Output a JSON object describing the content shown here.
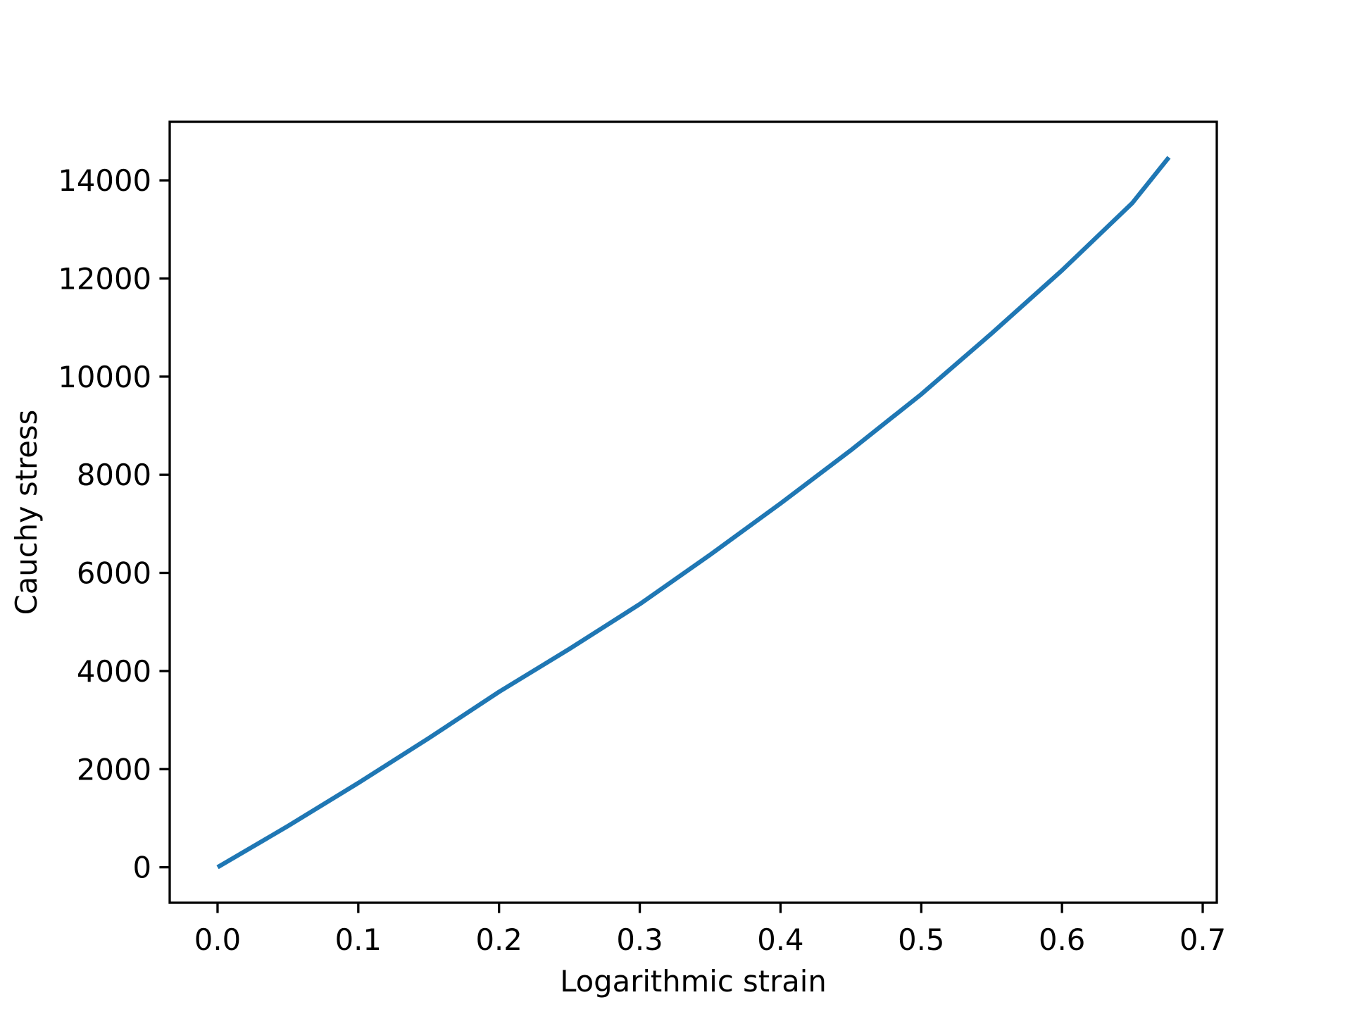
{
  "chart_data": {
    "type": "line",
    "title": "",
    "xlabel": "Logarithmic strain",
    "ylabel": "Cauchy stress",
    "xlim": [
      -0.034,
      0.71
    ],
    "ylim": [
      -723,
      15193
    ],
    "xticks": [
      0.0,
      0.1,
      0.2,
      0.3,
      0.4,
      0.5,
      0.6,
      0.7
    ],
    "xtick_labels": [
      "0.0",
      "0.1",
      "0.2",
      "0.3",
      "0.4",
      "0.5",
      "0.6",
      "0.7"
    ],
    "yticks": [
      0,
      2000,
      4000,
      6000,
      8000,
      10000,
      12000,
      14000
    ],
    "ytick_labels": [
      "0",
      "2000",
      "4000",
      "6000",
      "8000",
      "10000",
      "12000",
      "14000"
    ],
    "grid": false,
    "series": [
      {
        "color": "#1f77b4",
        "x": [
          0.0,
          0.05,
          0.1,
          0.15,
          0.2,
          0.25,
          0.3,
          0.35,
          0.4,
          0.45,
          0.5,
          0.55,
          0.6,
          0.65,
          0.676
        ],
        "y": [
          0,
          840,
          1718,
          2630,
          3576,
          4450,
          5364,
          6370,
          7415,
          8500,
          9641,
          10880,
          12165,
          13540,
          14470
        ]
      }
    ]
  }
}
